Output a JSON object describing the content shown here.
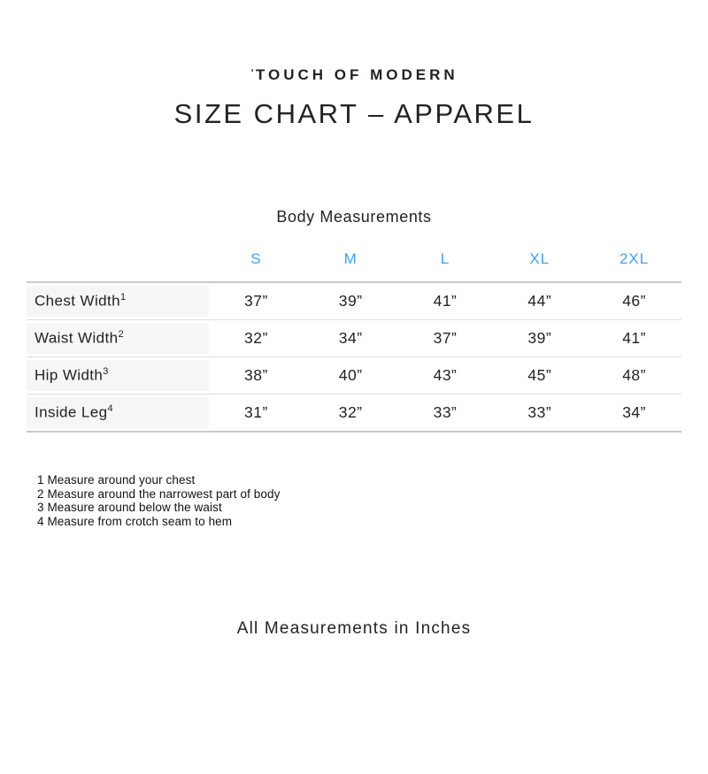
{
  "logo": {
    "mark": "ˈ",
    "text": "TOUCH OF MODERN"
  },
  "title": "SIZE CHART – APPAREL",
  "table": {
    "caption": "Body Measurements",
    "sizes": [
      "S",
      "M",
      "L",
      "XL",
      "2XL"
    ],
    "rows": [
      {
        "label": "Chest Width",
        "footnote_ref": "1",
        "values": [
          "37”",
          "39”",
          "41”",
          "44”",
          "46”"
        ]
      },
      {
        "label": "Waist Width",
        "footnote_ref": "2",
        "values": [
          "32”",
          "34”",
          "37”",
          "39”",
          "41”"
        ]
      },
      {
        "label": "Hip Width",
        "footnote_ref": "3",
        "values": [
          "38”",
          "40”",
          "43”",
          "45”",
          "48”"
        ]
      },
      {
        "label": "Inside Leg",
        "footnote_ref": "4",
        "values": [
          "31”",
          "32”",
          "33”",
          "33”",
          "34”"
        ]
      }
    ]
  },
  "footnotes": [
    "1 Measure around your chest",
    "2 Measure around the narrowest part of body",
    "3 Measure around below the waist",
    "4 Measure from crotch seam to hem"
  ],
  "footer": "All Measurements in Inches",
  "colors": {
    "accent_blue": "#3fa2ee",
    "label_bg": "#f6f6f7",
    "border_outer": "#c8c8c8",
    "border_inner": "#dedede",
    "text": "#232323"
  }
}
